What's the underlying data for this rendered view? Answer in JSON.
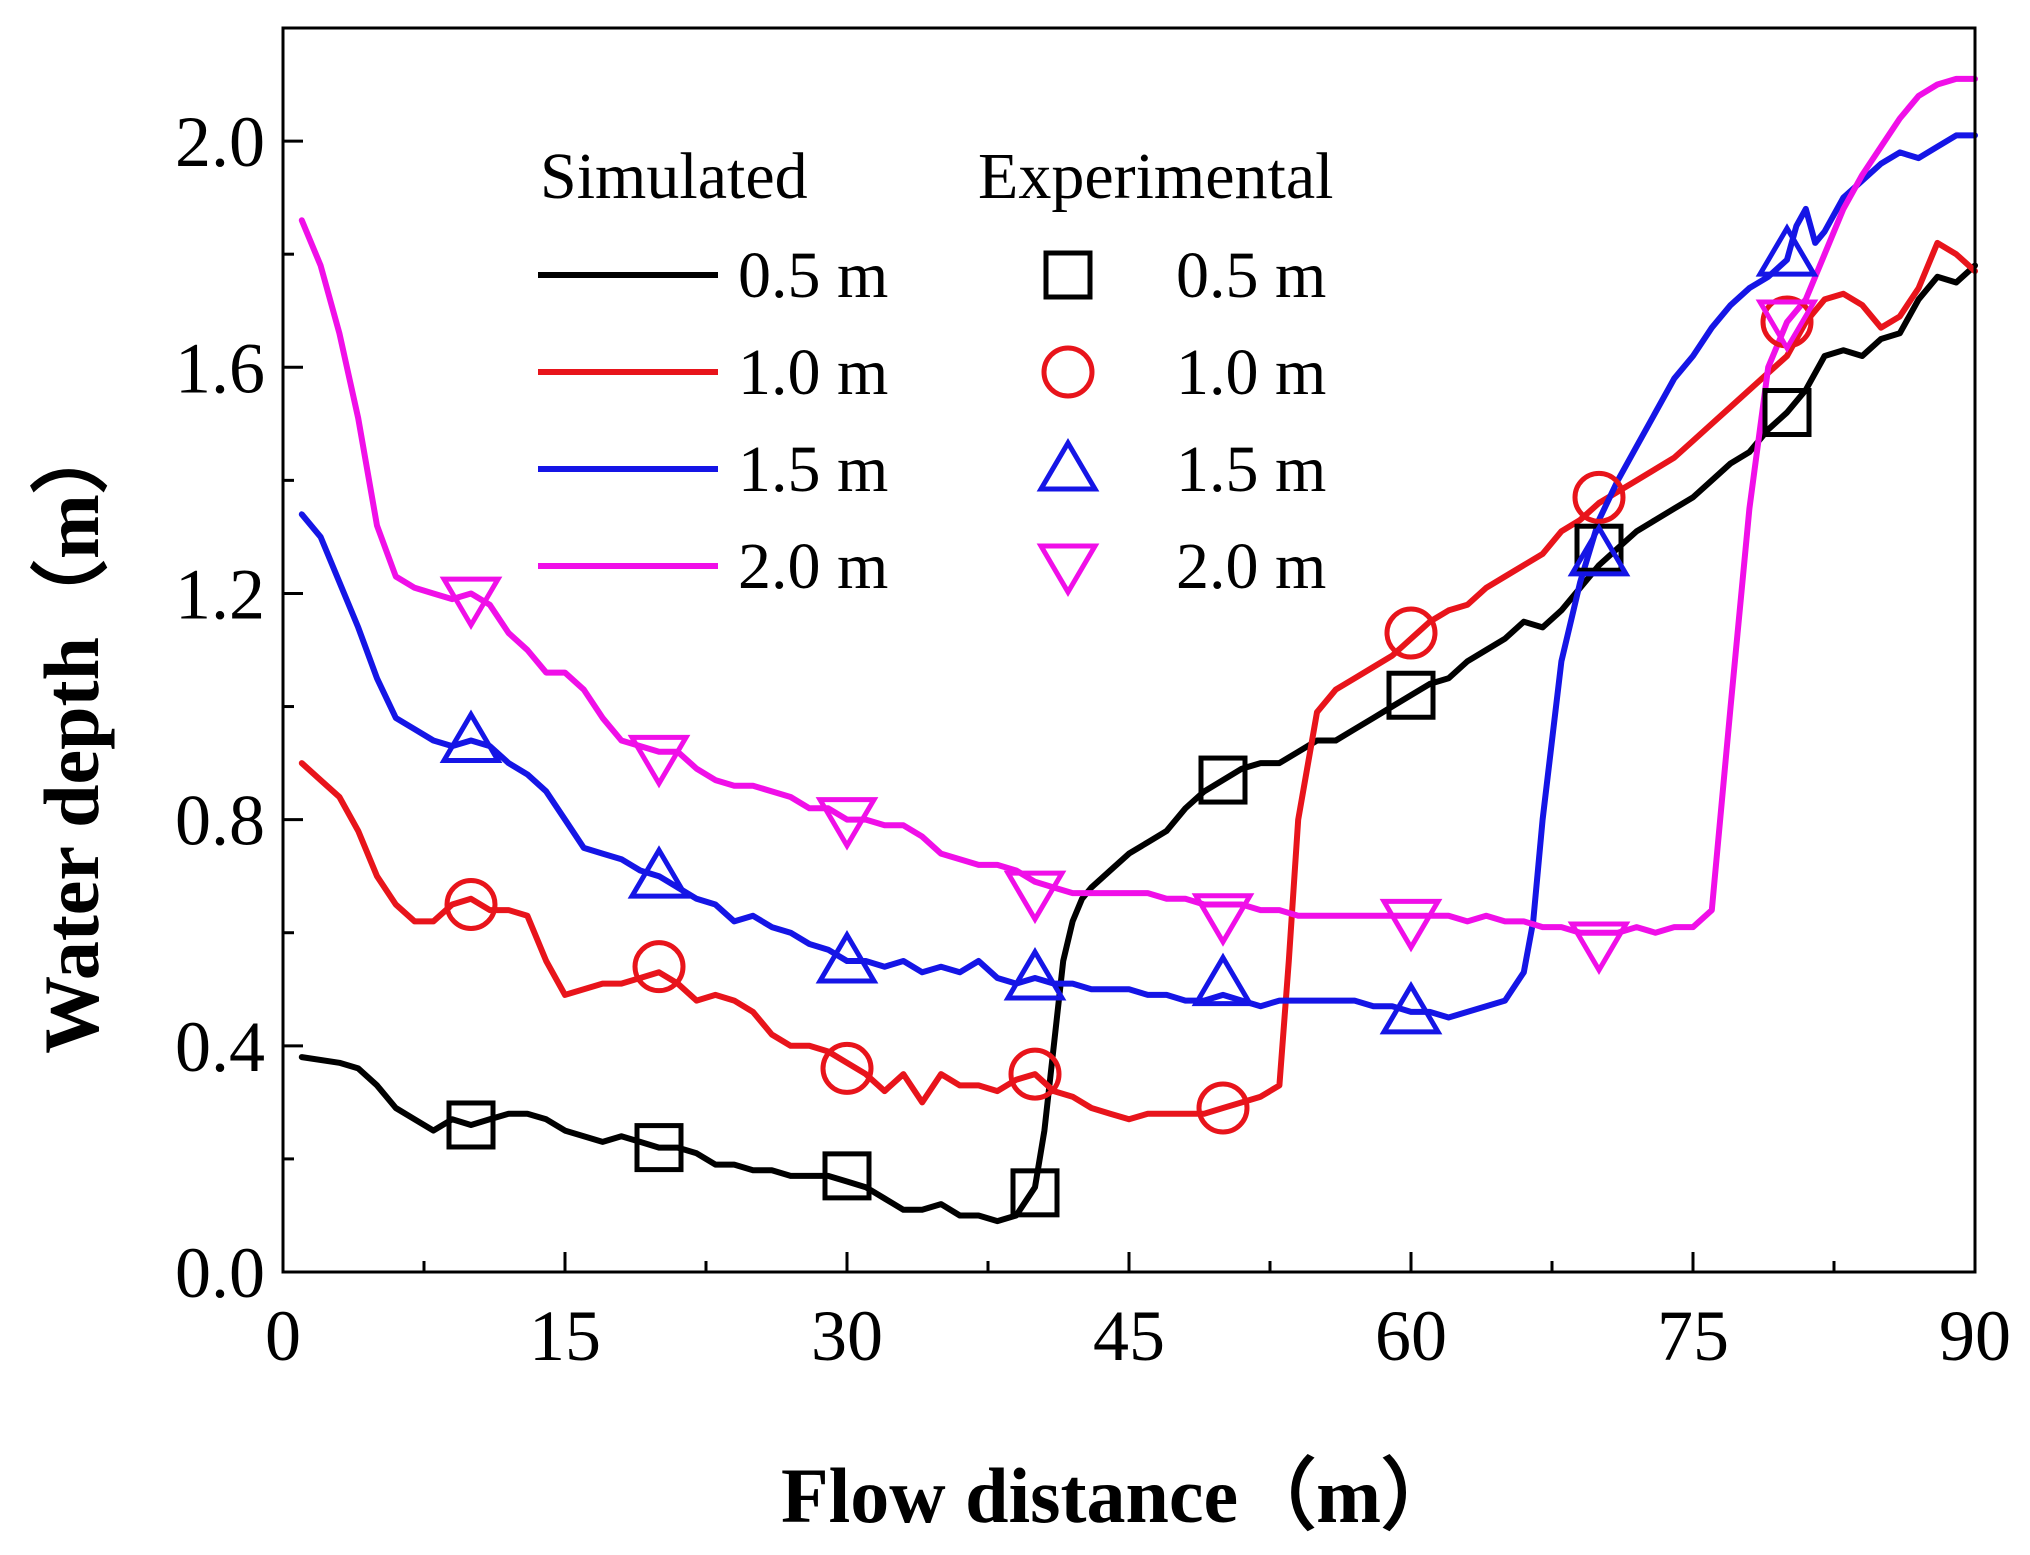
{
  "chart_data": {
    "type": "line",
    "xlabel": "Flow distance（m）",
    "ylabel": "Water depth（m）",
    "xlim": [
      0,
      90
    ],
    "ylim": [
      0,
      2.2
    ],
    "xticks": [
      0,
      15,
      30,
      45,
      60,
      75,
      90
    ],
    "xtick_labels": [
      "0",
      "15",
      "30",
      "45",
      "60",
      "75",
      "90"
    ],
    "yticks": [
      0,
      0.4,
      0.8,
      1.2,
      1.6,
      2.0
    ],
    "ytick_labels": [
      "0.0",
      "0.4",
      "0.8",
      "1.2",
      "1.6",
      "2.0"
    ],
    "grid": false,
    "legend": {
      "position": "top-center",
      "simulated_heading": "Simulated",
      "experimental_heading": "Experimental"
    },
    "series": [
      {
        "name": "0.5 m",
        "color": "#000000",
        "marker": "square",
        "simulated": {
          "x": [
            1,
            3,
            4,
            5,
            6,
            7,
            8,
            9,
            10,
            11,
            12,
            13,
            14,
            15,
            16,
            17,
            18,
            19,
            20,
            21,
            22,
            23,
            24,
            25,
            26,
            27,
            28,
            29,
            30,
            31,
            32,
            33,
            34,
            35,
            36,
            37,
            38,
            39,
            40,
            40.5,
            41,
            41.5,
            42,
            42.5,
            43,
            44,
            45,
            46,
            47,
            48,
            49,
            50,
            51,
            52,
            53,
            54,
            55,
            56,
            57,
            58,
            59,
            60,
            61,
            62,
            63,
            64,
            65,
            66,
            67,
            68,
            69,
            70,
            71,
            72,
            73,
            74,
            75,
            76,
            77,
            78,
            79,
            80,
            81,
            82,
            83,
            84,
            85,
            86,
            87,
            88,
            89,
            90
          ],
          "y": [
            0.38,
            0.37,
            0.36,
            0.33,
            0.29,
            0.27,
            0.25,
            0.27,
            0.26,
            0.27,
            0.28,
            0.28,
            0.27,
            0.25,
            0.24,
            0.23,
            0.24,
            0.23,
            0.22,
            0.22,
            0.21,
            0.19,
            0.19,
            0.18,
            0.18,
            0.17,
            0.17,
            0.17,
            0.16,
            0.15,
            0.13,
            0.11,
            0.11,
            0.12,
            0.1,
            0.1,
            0.09,
            0.1,
            0.15,
            0.25,
            0.4,
            0.55,
            0.62,
            0.66,
            0.68,
            0.71,
            0.74,
            0.76,
            0.78,
            0.82,
            0.85,
            0.87,
            0.89,
            0.9,
            0.9,
            0.92,
            0.94,
            0.94,
            0.96,
            0.98,
            1.0,
            1.02,
            1.04,
            1.05,
            1.08,
            1.1,
            1.12,
            1.15,
            1.14,
            1.17,
            1.21,
            1.25,
            1.28,
            1.31,
            1.33,
            1.35,
            1.37,
            1.4,
            1.43,
            1.45,
            1.49,
            1.52,
            1.56,
            1.62,
            1.63,
            1.62,
            1.65,
            1.66,
            1.72,
            1.76,
            1.75,
            1.78
          ]
        },
        "experimental": {
          "x": [
            10,
            20,
            30,
            40,
            50,
            60,
            70,
            80
          ],
          "y": [
            0.26,
            0.22,
            0.17,
            0.14,
            0.87,
            1.02,
            1.28,
            1.52
          ]
        }
      },
      {
        "name": "1.0 m",
        "color": "#e8141b",
        "marker": "circle",
        "simulated": {
          "x": [
            1,
            2,
            3,
            4,
            5,
            6,
            7,
            8,
            9,
            10,
            11,
            12,
            13,
            14,
            15,
            16,
            17,
            18,
            19,
            20,
            21,
            22,
            23,
            24,
            25,
            26,
            27,
            28,
            29,
            30,
            31,
            32,
            33,
            34,
            35,
            36,
            37,
            38,
            39,
            40,
            41,
            42,
            43,
            44,
            45,
            46,
            47,
            48,
            49,
            50,
            51,
            52,
            53,
            53.5,
            54,
            55,
            56,
            57,
            58,
            59,
            60,
            61,
            62,
            63,
            64,
            65,
            66,
            67,
            68,
            69,
            70,
            71,
            72,
            73,
            74,
            75,
            76,
            77,
            78,
            79,
            80,
            81,
            82,
            83,
            84,
            85,
            86,
            87,
            88,
            89,
            90
          ],
          "y": [
            0.9,
            0.87,
            0.84,
            0.78,
            0.7,
            0.65,
            0.62,
            0.62,
            0.65,
            0.66,
            0.64,
            0.64,
            0.63,
            0.55,
            0.49,
            0.5,
            0.51,
            0.51,
            0.52,
            0.53,
            0.51,
            0.48,
            0.49,
            0.48,
            0.46,
            0.42,
            0.4,
            0.4,
            0.39,
            0.37,
            0.35,
            0.32,
            0.35,
            0.3,
            0.35,
            0.33,
            0.33,
            0.32,
            0.34,
            0.35,
            0.32,
            0.31,
            0.29,
            0.28,
            0.27,
            0.28,
            0.28,
            0.28,
            0.28,
            0.29,
            0.3,
            0.31,
            0.33,
            0.55,
            0.8,
            0.99,
            1.03,
            1.05,
            1.07,
            1.09,
            1.12,
            1.15,
            1.17,
            1.18,
            1.21,
            1.23,
            1.25,
            1.27,
            1.31,
            1.33,
            1.36,
            1.38,
            1.4,
            1.42,
            1.44,
            1.47,
            1.5,
            1.53,
            1.56,
            1.59,
            1.62,
            1.68,
            1.72,
            1.73,
            1.71,
            1.67,
            1.69,
            1.74,
            1.82,
            1.8,
            1.77
          ]
        },
        "experimental": {
          "x": [
            10,
            20,
            30,
            40,
            50,
            60,
            70,
            80
          ],
          "y": [
            0.65,
            0.54,
            0.36,
            0.35,
            0.29,
            1.13,
            1.37,
            1.68
          ]
        }
      },
      {
        "name": "1.5 m",
        "color": "#1515e6",
        "marker": "triangle-up",
        "simulated": {
          "x": [
            1,
            2,
            3,
            4,
            5,
            6,
            7,
            8,
            9,
            10,
            11,
            12,
            13,
            14,
            15,
            16,
            17,
            18,
            19,
            20,
            21,
            22,
            23,
            24,
            25,
            26,
            27,
            28,
            29,
            30,
            31,
            32,
            33,
            34,
            35,
            36,
            37,
            38,
            39,
            40,
            41,
            42,
            43,
            44,
            45,
            46,
            47,
            48,
            49,
            50,
            51,
            52,
            53,
            54,
            55,
            56,
            57,
            58,
            59,
            60,
            61,
            62,
            63,
            64,
            65,
            66,
            66.5,
            67,
            68,
            69,
            70,
            71,
            72,
            73,
            74,
            75,
            76,
            77,
            78,
            79,
            80,
            80.5,
            81,
            81.5,
            82,
            83,
            84,
            85,
            86,
            87,
            88,
            89,
            90
          ],
          "y": [
            1.34,
            1.3,
            1.22,
            1.14,
            1.05,
            0.98,
            0.96,
            0.94,
            0.93,
            0.94,
            0.93,
            0.9,
            0.88,
            0.85,
            0.8,
            0.75,
            0.74,
            0.73,
            0.71,
            0.7,
            0.68,
            0.66,
            0.65,
            0.62,
            0.63,
            0.61,
            0.6,
            0.58,
            0.57,
            0.55,
            0.55,
            0.54,
            0.55,
            0.53,
            0.54,
            0.53,
            0.55,
            0.52,
            0.51,
            0.52,
            0.51,
            0.51,
            0.5,
            0.5,
            0.5,
            0.49,
            0.49,
            0.48,
            0.48,
            0.49,
            0.48,
            0.47,
            0.48,
            0.48,
            0.48,
            0.48,
            0.48,
            0.47,
            0.47,
            0.46,
            0.46,
            0.45,
            0.46,
            0.47,
            0.48,
            0.53,
            0.62,
            0.8,
            1.08,
            1.22,
            1.33,
            1.4,
            1.46,
            1.52,
            1.58,
            1.62,
            1.67,
            1.71,
            1.74,
            1.76,
            1.79,
            1.85,
            1.88,
            1.82,
            1.84,
            1.9,
            1.93,
            1.96,
            1.98,
            1.97,
            1.99,
            2.01,
            2.01
          ]
        },
        "experimental": {
          "x": [
            10,
            20,
            30,
            40,
            50,
            60,
            70,
            80
          ],
          "y": [
            0.94,
            0.7,
            0.55,
            0.52,
            0.51,
            0.46,
            1.27,
            1.8
          ]
        }
      },
      {
        "name": "2.0 m",
        "color": "#f00fe8",
        "marker": "triangle-down",
        "simulated": {
          "x": [
            1,
            2,
            3,
            4,
            5,
            6,
            7,
            8,
            9,
            10,
            11,
            12,
            13,
            14,
            15,
            16,
            17,
            18,
            19,
            20,
            21,
            22,
            23,
            24,
            25,
            26,
            27,
            28,
            29,
            30,
            31,
            32,
            33,
            34,
            35,
            36,
            37,
            38,
            39,
            40,
            41,
            42,
            43,
            44,
            45,
            46,
            47,
            48,
            49,
            50,
            51,
            52,
            53,
            54,
            55,
            56,
            57,
            58,
            59,
            60,
            61,
            62,
            63,
            64,
            65,
            66,
            67,
            68,
            69,
            70,
            71,
            72,
            73,
            74,
            75,
            76,
            77,
            78,
            79,
            80,
            81,
            82,
            83,
            84,
            85,
            86,
            87,
            88,
            89,
            90
          ],
          "y": [
            1.86,
            1.78,
            1.66,
            1.51,
            1.32,
            1.23,
            1.21,
            1.2,
            1.19,
            1.2,
            1.18,
            1.13,
            1.1,
            1.06,
            1.06,
            1.03,
            0.98,
            0.94,
            0.93,
            0.92,
            0.92,
            0.89,
            0.87,
            0.86,
            0.86,
            0.85,
            0.84,
            0.82,
            0.82,
            0.8,
            0.8,
            0.79,
            0.79,
            0.77,
            0.74,
            0.73,
            0.72,
            0.72,
            0.71,
            0.69,
            0.68,
            0.67,
            0.67,
            0.67,
            0.67,
            0.67,
            0.66,
            0.66,
            0.65,
            0.65,
            0.65,
            0.64,
            0.64,
            0.63,
            0.63,
            0.63,
            0.63,
            0.63,
            0.63,
            0.63,
            0.63,
            0.63,
            0.62,
            0.63,
            0.62,
            0.62,
            0.61,
            0.61,
            0.6,
            0.6,
            0.6,
            0.61,
            0.6,
            0.61,
            0.61,
            0.64,
            1.0,
            1.35,
            1.6,
            1.68,
            1.72,
            1.8,
            1.88,
            1.94,
            1.99,
            2.04,
            2.08,
            2.1,
            2.11,
            2.11
          ]
        },
        "experimental": {
          "x": [
            10,
            20,
            30,
            40,
            50,
            60,
            70,
            80
          ],
          "y": [
            1.19,
            0.91,
            0.8,
            0.67,
            0.63,
            0.62,
            0.58,
            1.68
          ]
        }
      }
    ]
  }
}
